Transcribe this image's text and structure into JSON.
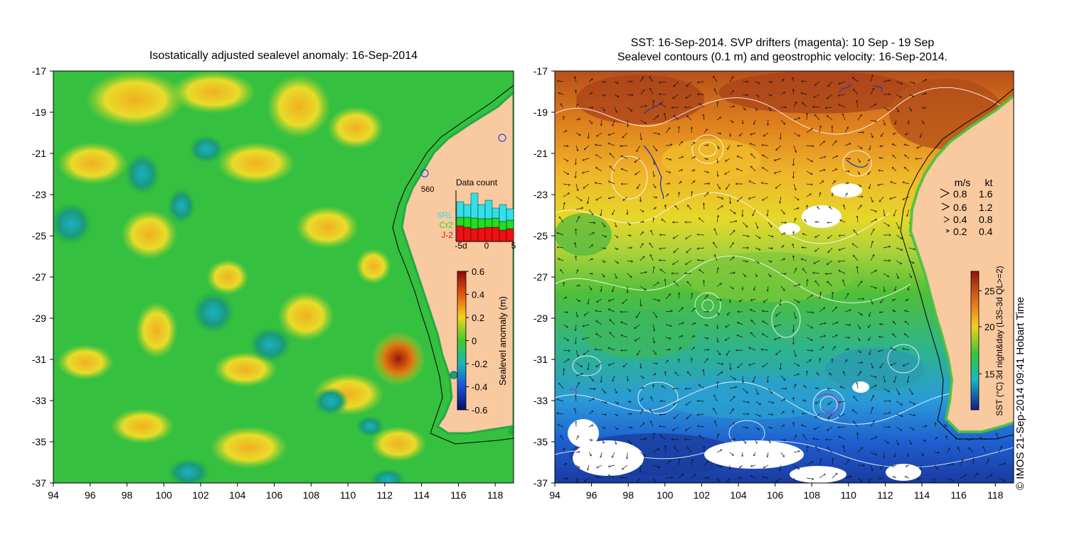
{
  "left_panel": {
    "title": "Isostatically adjusted sealevel anomaly: 16-Sep-2014",
    "x_ticks": [
      "94",
      "96",
      "98",
      "100",
      "102",
      "104",
      "106",
      "108",
      "110",
      "112",
      "114",
      "116",
      "118"
    ],
    "y_ticks": [
      "-17",
      "-19",
      "-21",
      "-23",
      "-25",
      "-27",
      "-29",
      "-31",
      "-33",
      "-35",
      "-37"
    ],
    "data_count": {
      "title": "Data count",
      "max_label": "560",
      "x_ticks": [
        "-5d",
        "0",
        "5"
      ],
      "legend": [
        {
          "label": "SRL",
          "color": "#33e0e8"
        },
        {
          "label": "Cr2",
          "color": "#22dd22"
        },
        {
          "label": "J-2",
          "color": "#ee1111"
        }
      ]
    },
    "colorbar": {
      "label": "Sealevel anomaly (m)",
      "ticks": [
        "0.6",
        "0.4",
        "0.2",
        "0",
        "-0.2",
        "-0.4",
        "-0.6"
      ]
    }
  },
  "right_panel": {
    "title_line1": "SST: 16-Sep-2014. SVP drifters (magenta): 10 Sep - 19 Sep",
    "title_line2": "Sealevel contours (0.1 m) and geostrophic velocity: 16-Sep-2014.",
    "x_ticks": [
      "94",
      "96",
      "98",
      "100",
      "102",
      "104",
      "106",
      "108",
      "110",
      "112",
      "114",
      "116",
      "118"
    ],
    "y_ticks": [
      "-17",
      "-19",
      "-21",
      "-23",
      "-25",
      "-27",
      "-29",
      "-31",
      "-33",
      "-35",
      "-37"
    ],
    "velocity_legend": {
      "headers": [
        "m/s",
        "kt"
      ],
      "rows": [
        [
          "0.8",
          "1.6"
        ],
        [
          "0.6",
          "1.2"
        ],
        [
          "0.4",
          "0.8"
        ],
        [
          "0.2",
          "0.4"
        ]
      ]
    },
    "colorbar": {
      "label": "SST (°C) 3d night&day (L3S-3d QL>=2)",
      "ticks": [
        "25",
        "20",
        "15"
      ]
    }
  },
  "credit": "© IMOS 21-Sep-2014 09:41 Hobart Time",
  "colors": {
    "land": "#f9c9a0",
    "sla_background": "#22bb33",
    "sst_warm": "#c8601a",
    "sst_cool": "#1f5fd0"
  }
}
